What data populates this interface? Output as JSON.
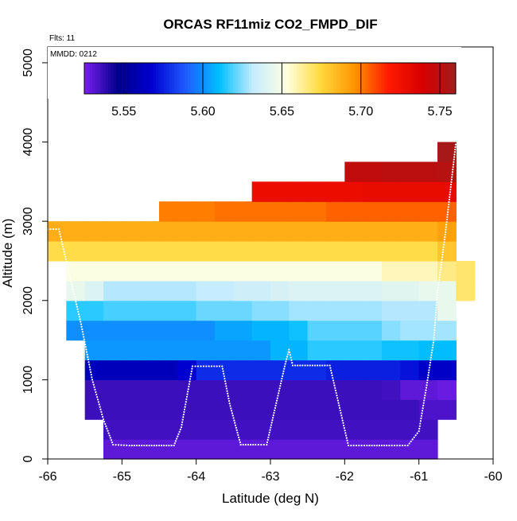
{
  "chart_data": {
    "type": "heatmap",
    "title": "ORCAS RF11miz CO2_FMPD_DIF",
    "flts_label": "Flts: 11",
    "mmdd_label": "MMDD: 0212",
    "xlabel": "Latitude (deg N)",
    "ylabel": "Altitude (m)",
    "xlim": [
      -66,
      -60
    ],
    "ylim": [
      0,
      5200
    ],
    "x_ticks": [
      "-66",
      "-65",
      "-64",
      "-63",
      "-62",
      "-61",
      "-60"
    ],
    "y_ticks": [
      "0",
      "1000",
      "2000",
      "3000",
      "4000",
      "5000"
    ],
    "colorbar": {
      "range": [
        5.525,
        5.76
      ],
      "ticks": [
        "5.55",
        "5.60",
        "5.65",
        "5.70",
        "5.75"
      ],
      "tick_values": [
        5.55,
        5.6,
        5.65,
        5.7,
        5.75
      ],
      "palette": [
        "#7b1ff0",
        "#00008b",
        "#0000d0",
        "#1e5bff",
        "#00bfff",
        "#c6ecff",
        "#ffffe0",
        "#ffd93c",
        "#ff9400",
        "#ff1a00",
        "#d70000",
        "#a21c1c"
      ]
    },
    "cell_width_deg": 0.25,
    "layers": [
      {
        "bottom": 0,
        "top": 250,
        "start": -65.25,
        "values": [
          5.53,
          5.53,
          5.53,
          5.53,
          5.53,
          5.53,
          5.53,
          5.53,
          5.53,
          5.53,
          5.53,
          5.53,
          5.53,
          5.53,
          5.53,
          5.53,
          5.53,
          5.53
        ]
      },
      {
        "bottom": 250,
        "top": 500,
        "start": -65.25,
        "values": [
          5.535,
          5.535,
          5.535,
          5.535,
          5.535,
          5.535,
          5.535,
          5.535,
          5.535,
          5.535,
          5.535,
          5.535,
          5.535,
          5.535,
          5.535,
          5.535,
          5.535,
          5.535
        ]
      },
      {
        "bottom": 500,
        "top": 750,
        "start": -65.5,
        "values": [
          5.536,
          5.536,
          5.536,
          5.536,
          5.536,
          5.536,
          5.536,
          5.536,
          5.536,
          5.536,
          5.536,
          5.536,
          5.536,
          5.536,
          5.536,
          5.536,
          5.536,
          5.536,
          5.533,
          5.533
        ]
      },
      {
        "bottom": 750,
        "top": 1000,
        "start": -65.5,
        "values": [
          5.536,
          5.536,
          5.536,
          5.536,
          5.536,
          5.536,
          5.536,
          5.536,
          5.536,
          5.536,
          5.536,
          5.536,
          5.536,
          5.536,
          5.536,
          5.536,
          5.535,
          5.53,
          5.53,
          5.528
        ]
      },
      {
        "bottom": 1000,
        "top": 1250,
        "start": -65.5,
        "values": [
          5.561,
          5.561,
          5.561,
          5.561,
          5.561,
          5.568,
          5.578,
          5.578,
          5.578,
          5.578,
          5.578,
          5.578,
          5.578,
          5.575,
          5.575,
          5.575,
          5.575,
          5.572,
          5.565,
          5.565
        ]
      },
      {
        "bottom": 1250,
        "top": 1500,
        "start": -65.5,
        "values": [
          5.602,
          5.602,
          5.602,
          5.602,
          5.602,
          5.602,
          5.602,
          5.602,
          5.602,
          5.602,
          5.608,
          5.608,
          5.615,
          5.615,
          5.615,
          5.615,
          5.612,
          5.612,
          5.61,
          5.61
        ]
      },
      {
        "bottom": 1500,
        "top": 1750,
        "start": -65.75,
        "values": [
          5.6,
          5.6,
          5.6,
          5.6,
          5.6,
          5.6,
          5.6,
          5.6,
          5.605,
          5.605,
          5.608,
          5.608,
          5.612,
          5.62,
          5.62,
          5.62,
          5.62,
          5.625,
          5.628,
          5.628,
          5.628
        ]
      },
      {
        "bottom": 1750,
        "top": 2000,
        "start": -65.75,
        "values": [
          5.615,
          5.615,
          5.618,
          5.618,
          5.618,
          5.618,
          5.618,
          5.622,
          5.622,
          5.622,
          5.625,
          5.625,
          5.628,
          5.628,
          5.628,
          5.628,
          5.628,
          5.63,
          5.63,
          5.63,
          5.645
        ]
      },
      {
        "bottom": 2000,
        "top": 2250,
        "start": -65.75,
        "values": [
          5.645,
          5.64,
          5.63,
          5.63,
          5.63,
          5.63,
          5.63,
          5.632,
          5.632,
          5.635,
          5.635,
          5.638,
          5.64,
          5.64,
          5.64,
          5.64,
          5.64,
          5.642,
          5.642,
          5.645,
          5.645,
          5.668
        ]
      },
      {
        "bottom": 2250,
        "top": 2500,
        "start": -65.75,
        "values": [
          5.652,
          5.652,
          5.652,
          5.652,
          5.652,
          5.652,
          5.652,
          5.652,
          5.652,
          5.652,
          5.652,
          5.652,
          5.652,
          5.652,
          5.652,
          5.652,
          5.652,
          5.658,
          5.658,
          5.658,
          5.665,
          5.668
        ]
      },
      {
        "bottom": 2500,
        "top": 2750,
        "start": -66,
        "values": [
          5.673,
          5.673,
          5.673,
          5.673,
          5.673,
          5.673,
          5.673,
          5.673,
          5.673,
          5.673,
          5.673,
          5.673,
          5.673,
          5.673,
          5.673,
          5.673,
          5.673,
          5.673,
          5.673,
          5.673,
          5.673,
          5.68
        ]
      },
      {
        "bottom": 2750,
        "top": 3000,
        "start": -66,
        "values": [
          5.688,
          5.688,
          5.688,
          5.688,
          5.688,
          5.688,
          5.688,
          5.688,
          5.688,
          5.688,
          5.688,
          5.688,
          5.688,
          5.688,
          5.688,
          5.688,
          5.688,
          5.688,
          5.688,
          5.688,
          5.688,
          5.692
        ]
      },
      {
        "bottom": 3000,
        "top": 3250,
        "start": -64.5,
        "values": [
          5.7,
          5.7,
          5.7,
          5.702,
          5.702,
          5.702,
          5.702,
          5.702,
          5.702,
          5.705,
          5.705,
          5.705,
          5.705,
          5.705,
          5.705,
          5.705
        ]
      },
      {
        "bottom": 3250,
        "top": 3500,
        "start": -63.25,
        "values": [
          5.728,
          5.728,
          5.728,
          5.728,
          5.728,
          5.728,
          5.73,
          5.73,
          5.73,
          5.73,
          5.73
        ]
      },
      {
        "bottom": 3500,
        "top": 3750,
        "start": -62,
        "values": [
          5.748,
          5.748,
          5.75,
          5.75,
          5.75,
          5.752
        ]
      },
      {
        "bottom": 3750,
        "top": 4000,
        "start": -60.75,
        "values": [
          5.758
        ]
      }
    ],
    "flight_track": [
      [
        -66.0,
        2900
      ],
      [
        -65.85,
        2900
      ],
      [
        -65.7,
        2300
      ],
      [
        -65.55,
        1700
      ],
      [
        -65.4,
        1000
      ],
      [
        -65.25,
        500
      ],
      [
        -65.12,
        180
      ],
      [
        -64.9,
        170
      ],
      [
        -64.6,
        170
      ],
      [
        -64.3,
        170
      ],
      [
        -64.2,
        400
      ],
      [
        -64.05,
        1170
      ],
      [
        -63.9,
        1170
      ],
      [
        -63.65,
        1170
      ],
      [
        -63.55,
        700
      ],
      [
        -63.4,
        180
      ],
      [
        -63.2,
        180
      ],
      [
        -63.05,
        180
      ],
      [
        -62.8,
        1200
      ],
      [
        -62.75,
        1380
      ],
      [
        -62.7,
        1180
      ],
      [
        -62.5,
        1180
      ],
      [
        -62.2,
        1180
      ],
      [
        -61.95,
        170
      ],
      [
        -61.7,
        170
      ],
      [
        -61.4,
        170
      ],
      [
        -61.15,
        170
      ],
      [
        -61.0,
        350
      ],
      [
        -60.9,
        900
      ],
      [
        -60.8,
        1500
      ],
      [
        -60.75,
        2100
      ],
      [
        -60.65,
        2800
      ],
      [
        -60.5,
        4000
      ]
    ]
  }
}
